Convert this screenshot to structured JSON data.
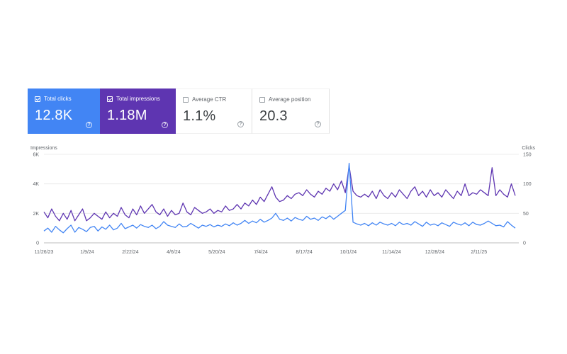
{
  "metrics": [
    {
      "label": "Total clicks",
      "value": "12.8K",
      "active": true,
      "color": "#4285f4"
    },
    {
      "label": "Total impressions",
      "value": "1.18M",
      "active": true,
      "color": "#5e35b1"
    },
    {
      "label": "Average CTR",
      "value": "1.1%",
      "active": false
    },
    {
      "label": "Average position",
      "value": "20.3",
      "active": false
    }
  ],
  "help_glyph": "?",
  "chart_data": {
    "type": "line",
    "left_axis": {
      "title": "Impressions",
      "ticks": [
        "0",
        "2K",
        "4K",
        "6K"
      ],
      "range": [
        0,
        6000
      ]
    },
    "right_axis": {
      "title": "Clicks",
      "ticks": [
        "0",
        "50",
        "100",
        "150"
      ],
      "range": [
        0,
        150
      ]
    },
    "x_labels": [
      "11/26/23",
      "1/9/24",
      "2/22/24",
      "4/6/24",
      "5/20/24",
      "7/4/24",
      "8/17/24",
      "10/1/24",
      "11/14/24",
      "12/28/24",
      "2/11/25"
    ],
    "x_range": [
      "2023-11-26",
      "2025-03-20"
    ],
    "grid": true,
    "series": [
      {
        "name": "Total impressions",
        "axis": "left",
        "color": "#5e35b1",
        "values": [
          2100,
          1700,
          2300,
          1800,
          1500,
          2000,
          1600,
          2200,
          1500,
          1900,
          2300,
          1500,
          1700,
          2000,
          1800,
          1600,
          2100,
          1700,
          2000,
          1800,
          2400,
          1900,
          1700,
          2300,
          1900,
          2500,
          2000,
          2300,
          2600,
          2100,
          1900,
          2300,
          1800,
          2200,
          1900,
          2000,
          2700,
          2100,
          1900,
          2400,
          2200,
          2000,
          2100,
          2300,
          2000,
          2200,
          2100,
          2500,
          2200,
          2300,
          2600,
          2300,
          2700,
          2500,
          2900,
          2600,
          3100,
          2800,
          3300,
          3800,
          3100,
          2800,
          2900,
          3200,
          3000,
          3300,
          3400,
          3200,
          3600,
          3300,
          3100,
          3500,
          3300,
          3700,
          3500,
          4000,
          3600,
          4200,
          3400,
          5200,
          3500,
          3200,
          3100,
          3300,
          3100,
          3500,
          3000,
          3600,
          3200,
          3000,
          3400,
          3100,
          3600,
          3300,
          3000,
          3500,
          3800,
          3200,
          3500,
          3100,
          3600,
          3200,
          3400,
          3100,
          3600,
          3300,
          3000,
          3500,
          3200,
          4000,
          3200,
          3400,
          3300,
          3600,
          3400,
          3200,
          5100,
          3200,
          3600,
          3300,
          3100,
          4000,
          3200
        ]
      },
      {
        "name": "Total clicks",
        "axis": "right",
        "color": "#4285f4",
        "values": [
          20,
          25,
          18,
          28,
          22,
          17,
          24,
          30,
          18,
          26,
          23,
          19,
          26,
          28,
          20,
          27,
          23,
          30,
          22,
          25,
          33,
          24,
          27,
          30,
          25,
          31,
          28,
          26,
          30,
          24,
          28,
          36,
          30,
          28,
          26,
          32,
          27,
          28,
          33,
          29,
          25,
          30,
          28,
          31,
          27,
          30,
          28,
          32,
          29,
          34,
          30,
          33,
          38,
          33,
          37,
          34,
          40,
          35,
          38,
          42,
          50,
          40,
          38,
          42,
          37,
          43,
          40,
          38,
          45,
          40,
          42,
          38,
          44,
          41,
          46,
          40,
          45,
          50,
          55,
          135,
          35,
          32,
          30,
          33,
          29,
          34,
          30,
          35,
          32,
          30,
          33,
          29,
          35,
          31,
          33,
          30,
          36,
          32,
          28,
          35,
          30,
          32,
          29,
          34,
          31,
          28,
          35,
          32,
          30,
          34,
          29,
          35,
          31,
          30,
          33,
          37,
          33,
          29,
          30,
          27,
          36,
          30,
          25
        ]
      }
    ]
  }
}
